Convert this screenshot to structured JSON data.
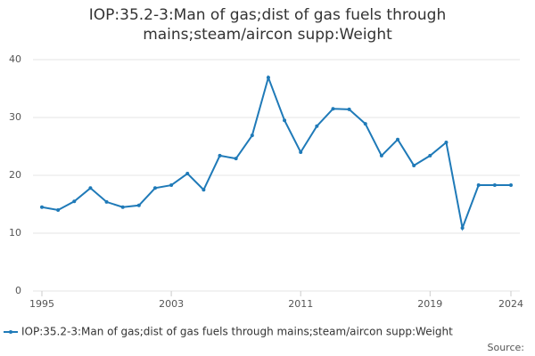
{
  "chart_data": {
    "type": "line",
    "title": "IOP:35.2-3:Man of gas;dist of gas fuels through mains;steam/aircon supp:Weight",
    "x": [
      1995,
      1996,
      1997,
      1998,
      1999,
      2000,
      2001,
      2002,
      2003,
      2004,
      2005,
      2006,
      2007,
      2008,
      2009,
      2010,
      2011,
      2012,
      2013,
      2014,
      2015,
      2016,
      2017,
      2018,
      2019,
      2020,
      2021,
      2022,
      2023,
      2024
    ],
    "series": [
      {
        "name": "IOP:35.2-3:Man of gas;dist of gas fuels through mains;steam/aircon supp:Weight",
        "color": "#1f7ab8",
        "values": [
          14.5,
          14,
          15.5,
          17.8,
          15.4,
          14.5,
          14.8,
          17.8,
          18.3,
          20.3,
          17.5,
          23.4,
          22.9,
          26.9,
          36.9,
          29.5,
          24,
          28.5,
          31.5,
          31.4,
          28.9,
          23.4,
          26.2,
          21.7,
          23.4,
          25.7,
          10.9,
          18.3,
          18.3,
          18.3
        ]
      }
    ],
    "xlim": [
      1995,
      2024
    ],
    "xticks": [
      1995,
      2003,
      2011,
      2019,
      2024
    ],
    "ylim": [
      0,
      40
    ],
    "yticks": [
      0,
      10,
      20,
      30,
      40
    ],
    "grid": true,
    "source": "Source:"
  }
}
